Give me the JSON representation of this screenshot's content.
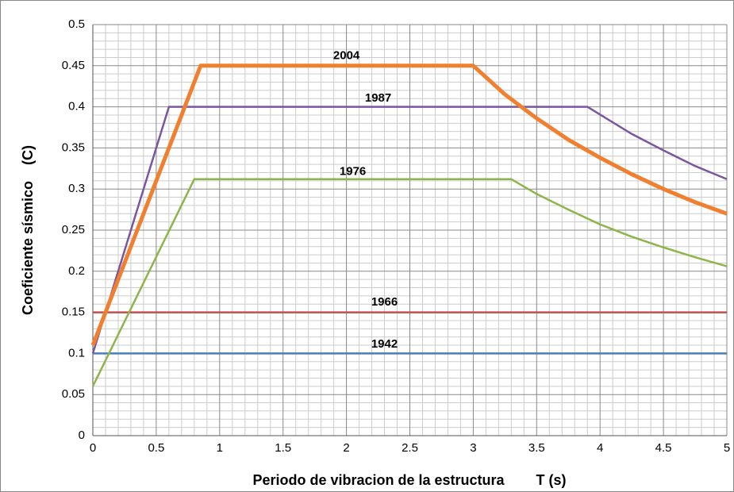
{
  "chart_data": {
    "type": "line",
    "x_label": "Periodo de vibracion de la estructura        T (s)",
    "y_label": "Coeficiente sísmico    (C)",
    "xlim": [
      0,
      5
    ],
    "xticks": [
      0,
      0.5,
      1,
      1.5,
      2,
      2.5,
      3,
      3.5,
      4,
      4.5,
      5
    ],
    "ylim": [
      0,
      0.5
    ],
    "yticks": [
      0,
      0.05,
      0.1,
      0.15,
      0.2,
      0.25,
      0.3,
      0.35,
      0.4,
      0.45,
      0.5
    ],
    "grid": true,
    "series": [
      {
        "name": "2004",
        "color": "#f0802f",
        "x": [
          0,
          0.85,
          3,
          3.25,
          3.5,
          3.75,
          4,
          4.25,
          4.5,
          4.75,
          5
        ],
        "values": [
          0.11,
          0.45,
          0.45,
          0.415,
          0.386,
          0.36,
          0.338,
          0.318,
          0.3,
          0.284,
          0.27
        ]
      },
      {
        "name": "1987",
        "color": "#7b56a0",
        "x": [
          0,
          0.6,
          3.9,
          4.25,
          4.5,
          4.75,
          5
        ],
        "values": [
          0.1,
          0.4,
          0.4,
          0.367,
          0.347,
          0.328,
          0.312
        ]
      },
      {
        "name": "1976",
        "color": "#8db54b",
        "x": [
          0,
          0.8,
          3.3,
          3.5,
          3.75,
          4,
          4.25,
          4.5,
          4.75,
          5
        ],
        "values": [
          0.06,
          0.312,
          0.312,
          0.294,
          0.275,
          0.257,
          0.242,
          0.229,
          0.217,
          0.206
        ]
      },
      {
        "name": "1966",
        "color": "#c0504d",
        "x": [
          0,
          5
        ],
        "values": [
          0.15,
          0.15
        ]
      },
      {
        "name": "1942",
        "color": "#4a7ebb",
        "x": [
          0,
          5
        ],
        "values": [
          0.1,
          0.1
        ]
      }
    ]
  }
}
